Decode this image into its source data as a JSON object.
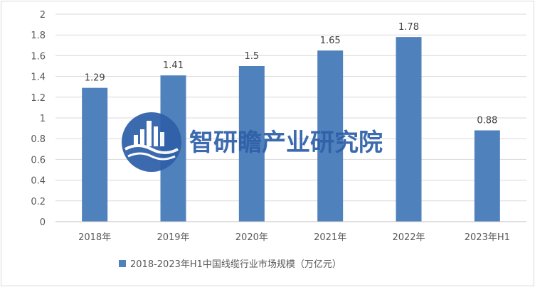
{
  "chart_data": {
    "type": "bar",
    "categories": [
      "2018年",
      "2019年",
      "2020年",
      "2021年",
      "2022年",
      "2023年H1"
    ],
    "series": [
      {
        "name": "2018-2023年H1中国线缆行业市场规模（万亿元）",
        "values": [
          1.29,
          1.41,
          1.5,
          1.65,
          1.78,
          0.88
        ]
      }
    ],
    "data_labels": [
      "1.29",
      "1.41",
      "1.5",
      "1.65",
      "1.78",
      "0.88"
    ],
    "yticks": [
      "0",
      "0.2",
      "0.4",
      "0.6",
      "0.8",
      "1",
      "1.2",
      "1.4",
      "1.6",
      "1.8",
      "2"
    ],
    "ylim": [
      0,
      2
    ],
    "grid": true,
    "legend_position": "bottom",
    "bar_color": "#4f81bd",
    "title": "",
    "xlabel": "",
    "ylabel": ""
  },
  "watermark": {
    "text": "智研瞻产业研究院",
    "color": "#2e5fa8"
  }
}
